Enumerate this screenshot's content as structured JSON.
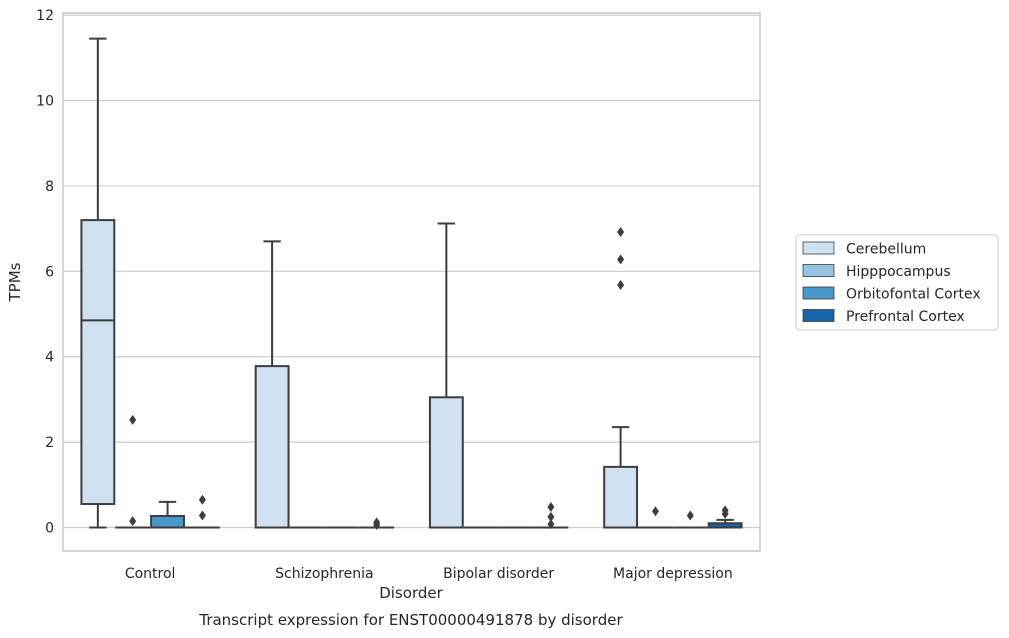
{
  "chart_data": {
    "type": "box",
    "title": "Transcript expression for ENST00000491878 by disorder",
    "xlabel": "Disorder",
    "ylabel": "TPMs",
    "ylim": [
      -0.55,
      12.05
    ],
    "yticks": [
      0,
      2,
      4,
      6,
      8,
      10,
      12
    ],
    "categories": [
      "Control",
      "Schizophrenia",
      "Bipolar disorder",
      "Major depression"
    ],
    "grid": true,
    "legend_position": "right",
    "series": [
      {
        "name": "Cerebellum",
        "color": "#d0e1f2",
        "boxes": [
          {
            "whisker_low": 0,
            "q1": 0.55,
            "median": 4.85,
            "q3": 7.2,
            "whisker_high": 11.45,
            "outliers": []
          },
          {
            "whisker_low": 0,
            "q1": 0,
            "median": 0,
            "q3": 3.78,
            "whisker_high": 6.7,
            "outliers": []
          },
          {
            "whisker_low": 0,
            "q1": 0,
            "median": 0,
            "q3": 3.05,
            "whisker_high": 7.12,
            "outliers": []
          },
          {
            "whisker_low": 0,
            "q1": 0,
            "median": 0,
            "q3": 1.42,
            "whisker_high": 2.35,
            "outliers": [
              5.68,
              6.28,
              6.92
            ]
          }
        ]
      },
      {
        "name": "Hipppocampus",
        "color": "#94c4df",
        "boxes": [
          {
            "whisker_low": 0,
            "q1": 0,
            "median": 0,
            "q3": 0,
            "whisker_high": 0,
            "outliers": [
              2.52,
              0.15
            ]
          },
          {
            "whisker_low": 0,
            "q1": 0,
            "median": 0,
            "q3": 0,
            "whisker_high": 0,
            "outliers": []
          },
          {
            "whisker_low": 0,
            "q1": 0,
            "median": 0,
            "q3": 0,
            "whisker_high": 0,
            "outliers": []
          },
          {
            "whisker_low": 0,
            "q1": 0,
            "median": 0,
            "q3": 0,
            "whisker_high": 0,
            "outliers": [
              0.38
            ]
          }
        ]
      },
      {
        "name": "Orbitofontal Cortex",
        "color": "#4a98c9",
        "boxes": [
          {
            "whisker_low": 0,
            "q1": 0,
            "median": 0,
            "q3": 0.27,
            "whisker_high": 0.6,
            "outliers": []
          },
          {
            "whisker_low": 0,
            "q1": 0,
            "median": 0,
            "q3": 0,
            "whisker_high": 0,
            "outliers": []
          },
          {
            "whisker_low": 0,
            "q1": 0,
            "median": 0,
            "q3": 0,
            "whisker_high": 0,
            "outliers": []
          },
          {
            "whisker_low": 0,
            "q1": 0,
            "median": 0,
            "q3": 0,
            "whisker_high": 0,
            "outliers": [
              0.28
            ]
          }
        ]
      },
      {
        "name": "Prefrontal Cortex",
        "color": "#1764ab",
        "boxes": [
          {
            "whisker_low": 0,
            "q1": 0,
            "median": 0,
            "q3": 0,
            "whisker_high": 0,
            "outliers": [
              0.28,
              0.65
            ]
          },
          {
            "whisker_low": 0,
            "q1": 0,
            "median": 0,
            "q3": 0,
            "whisker_high": 0,
            "outliers": [
              0.06,
              0.12
            ]
          },
          {
            "whisker_low": 0,
            "q1": 0,
            "median": 0,
            "q3": 0,
            "whisker_high": 0,
            "outliers": [
              0.08,
              0.25,
              0.48
            ]
          },
          {
            "whisker_low": 0,
            "q1": 0,
            "median": 0,
            "q3": 0.1,
            "whisker_high": 0.18,
            "outliers": [
              0.32,
              0.4
            ]
          }
        ]
      }
    ]
  }
}
